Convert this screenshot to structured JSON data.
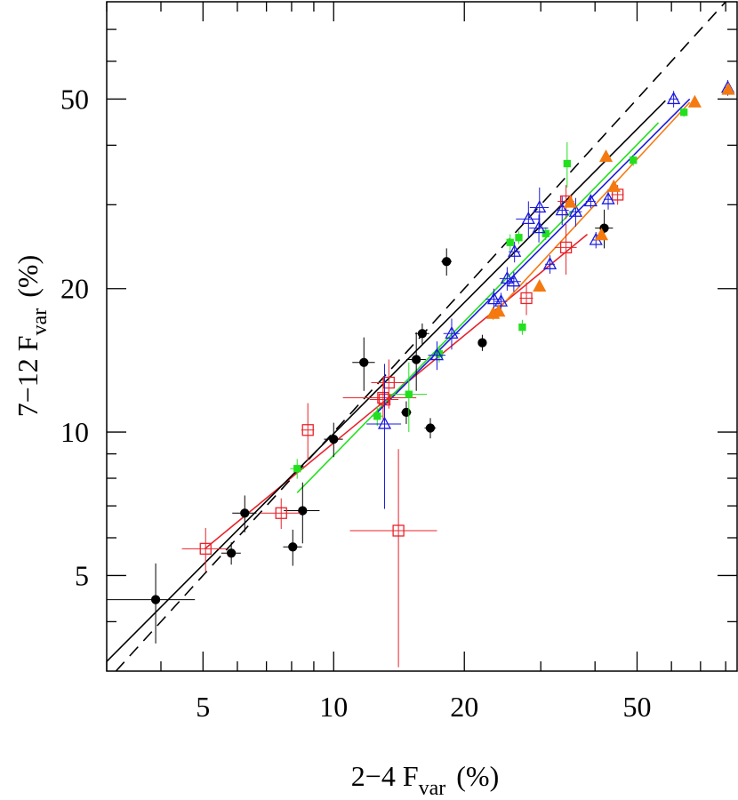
{
  "chart_data": {
    "type": "scatter",
    "xlabel": "2−4 F",
    "xlabel_sub": "var",
    "xlabel_end": "(%)",
    "ylabel": "7−12 F",
    "ylabel_sub": "var",
    "ylabel_end": "(%)",
    "xscale": "log",
    "yscale": "log",
    "xlim": [
      3,
      85
    ],
    "ylim": [
      3.15,
      80
    ],
    "xticks": [
      5,
      10,
      20,
      50
    ],
    "yticks": [
      5,
      10,
      20,
      50
    ],
    "xminorticks": [
      3,
      4,
      6,
      7,
      8,
      9,
      30,
      40,
      60,
      70,
      80
    ],
    "yminorticks": [
      4,
      6,
      7,
      8,
      9,
      30,
      40,
      60,
      70
    ],
    "series": [
      {
        "marker": "circle",
        "filled": true,
        "color": "#000000",
        "x": [
          3.89,
          5.81,
          6.24,
          8.05,
          8.48,
          10,
          11.74,
          14.7,
          15.5,
          16.0,
          16.7,
          18.2,
          22.0,
          42.0
        ],
        "y": [
          4.45,
          5.57,
          6.76,
          5.74,
          6.84,
          9.66,
          14.0,
          11.0,
          14.2,
          16.1,
          10.2,
          22.8,
          15.4,
          26.8
        ],
        "xerr": [
          0.9,
          0.3,
          0.4,
          0.4,
          0.8,
          0.5,
          0.7,
          0.4,
          0.8,
          0.6,
          0.5,
          0.5,
          0.5,
          2.0
        ],
        "yerr": [
          0.85,
          0.3,
          0.6,
          0.5,
          1.0,
          0.8,
          1.8,
          0.6,
          2.0,
          0.8,
          0.5,
          1.5,
          0.6,
          2.5
        ]
      },
      {
        "marker": "square",
        "filled": false,
        "color": "#e8232a",
        "x": [
          5.07,
          7.57,
          8.72,
          14.1,
          13.0,
          13.4,
          13.1,
          27.8,
          34.3,
          34.3,
          45.1
        ],
        "y": [
          5.69,
          6.76,
          10.1,
          6.21,
          11.8,
          12.7,
          11.7,
          19.1,
          24.4,
          30.5,
          31.5
        ],
        "xerr": [
          0.6,
          0.8,
          0.3,
          3.2,
          2.5,
          1.2,
          1.0,
          1.0,
          2.0,
          1.5,
          1.5
        ],
        "yerr": [
          0.6,
          0.5,
          1.4,
          3.0,
          1.2,
          1.5,
          1.0,
          1.5,
          3.0,
          2.5,
          1.5
        ]
      },
      {
        "marker": "square",
        "filled": true,
        "color": "#22e01e",
        "x": [
          8.24,
          12.6,
          14.9,
          17.5,
          25.5,
          26.7,
          27.2,
          30.8,
          34.5,
          49.0,
          64.1
        ],
        "y": [
          8.38,
          10.8,
          12.0,
          14.6,
          25.0,
          25.6,
          16.6,
          26.1,
          36.6,
          37.2,
          46.9
        ],
        "xerr": [
          0.3,
          0.4,
          1.5,
          0.4,
          0.4,
          0.4,
          0.4,
          0.5,
          0.6,
          0.8,
          0.8
        ],
        "yerr": [
          0.4,
          0.5,
          2.0,
          0.6,
          1.0,
          0.8,
          0.6,
          0.8,
          4.0,
          1.0,
          1.0
        ]
      },
      {
        "marker": "triangle",
        "filled": false,
        "color": "#1a1adf",
        "x": [
          13.1,
          17.3,
          18.7,
          23.4,
          24.3,
          25.1,
          26.0,
          26.1,
          28.1,
          29.7,
          29.8,
          31.5,
          33.6,
          36.1,
          39.1,
          40.2,
          42.9,
          60.7,
          80.9
        ],
        "y": [
          10.4,
          14.5,
          16.1,
          19.0,
          18.8,
          21.0,
          20.7,
          23.9,
          28.0,
          26.8,
          29.6,
          22.5,
          29.2,
          29.0,
          30.5,
          25.3,
          30.8,
          50,
          52.8
        ],
        "xerr": [
          1.2,
          0.8,
          0.8,
          1.0,
          0.8,
          1.0,
          1.0,
          0.8,
          1.8,
          1.5,
          1.5,
          0.8,
          1.2,
          1.2,
          1.0,
          0.8,
          1.0,
          1.5,
          1.5
        ],
        "yerr": [
          3.5,
          1.0,
          1.2,
          1.0,
          0.8,
          1.2,
          1.0,
          1.2,
          2.5,
          1.8,
          3.0,
          1.0,
          2.0,
          2.0,
          1.0,
          1.0,
          1.5,
          2.0,
          2.0
        ]
      },
      {
        "marker": "triangle",
        "filled": true,
        "color": "#f47a10",
        "x": [
          23.3,
          24.0,
          29.8,
          35.1,
          41.4,
          42.4,
          44.2,
          67.9,
          81.1
        ],
        "y": [
          17.7,
          17.9,
          20.2,
          30.3,
          25.9,
          37.8,
          32.7,
          49.2,
          52.3
        ],
        "xerr": [
          0.5,
          0.5,
          0.5,
          0.5,
          0.5,
          0.5,
          0.5,
          0.5,
          0.5
        ],
        "yerr": [
          0.5,
          0.5,
          0.5,
          0.5,
          0.5,
          0.5,
          0.5,
          0.5,
          0.5
        ]
      }
    ],
    "lines": [
      {
        "color": "#000000",
        "dash": true,
        "x": [
          3.15,
          80
        ],
        "y": [
          3.15,
          80
        ]
      },
      {
        "color": "#e8232a",
        "dash": false,
        "x": [
          5.05,
          38.4
        ],
        "y": [
          5.69,
          26.0
        ]
      },
      {
        "color": "#22e01e",
        "dash": false,
        "x": [
          8.24,
          56.0
        ],
        "y": [
          7.46,
          44.6
        ]
      },
      {
        "color": "#1a1adf",
        "dash": false,
        "x": [
          12.6,
          66.1
        ],
        "y": [
          11.0,
          50
        ]
      },
      {
        "color": "#f47a10",
        "dash": false,
        "x": [
          23.4,
          66.1
        ],
        "y": [
          17.7,
          49.2
        ]
      },
      {
        "color": "#000000",
        "dash": false,
        "x": [
          3.0,
          58.1
        ],
        "y": [
          3.3,
          49.6
        ]
      }
    ]
  }
}
